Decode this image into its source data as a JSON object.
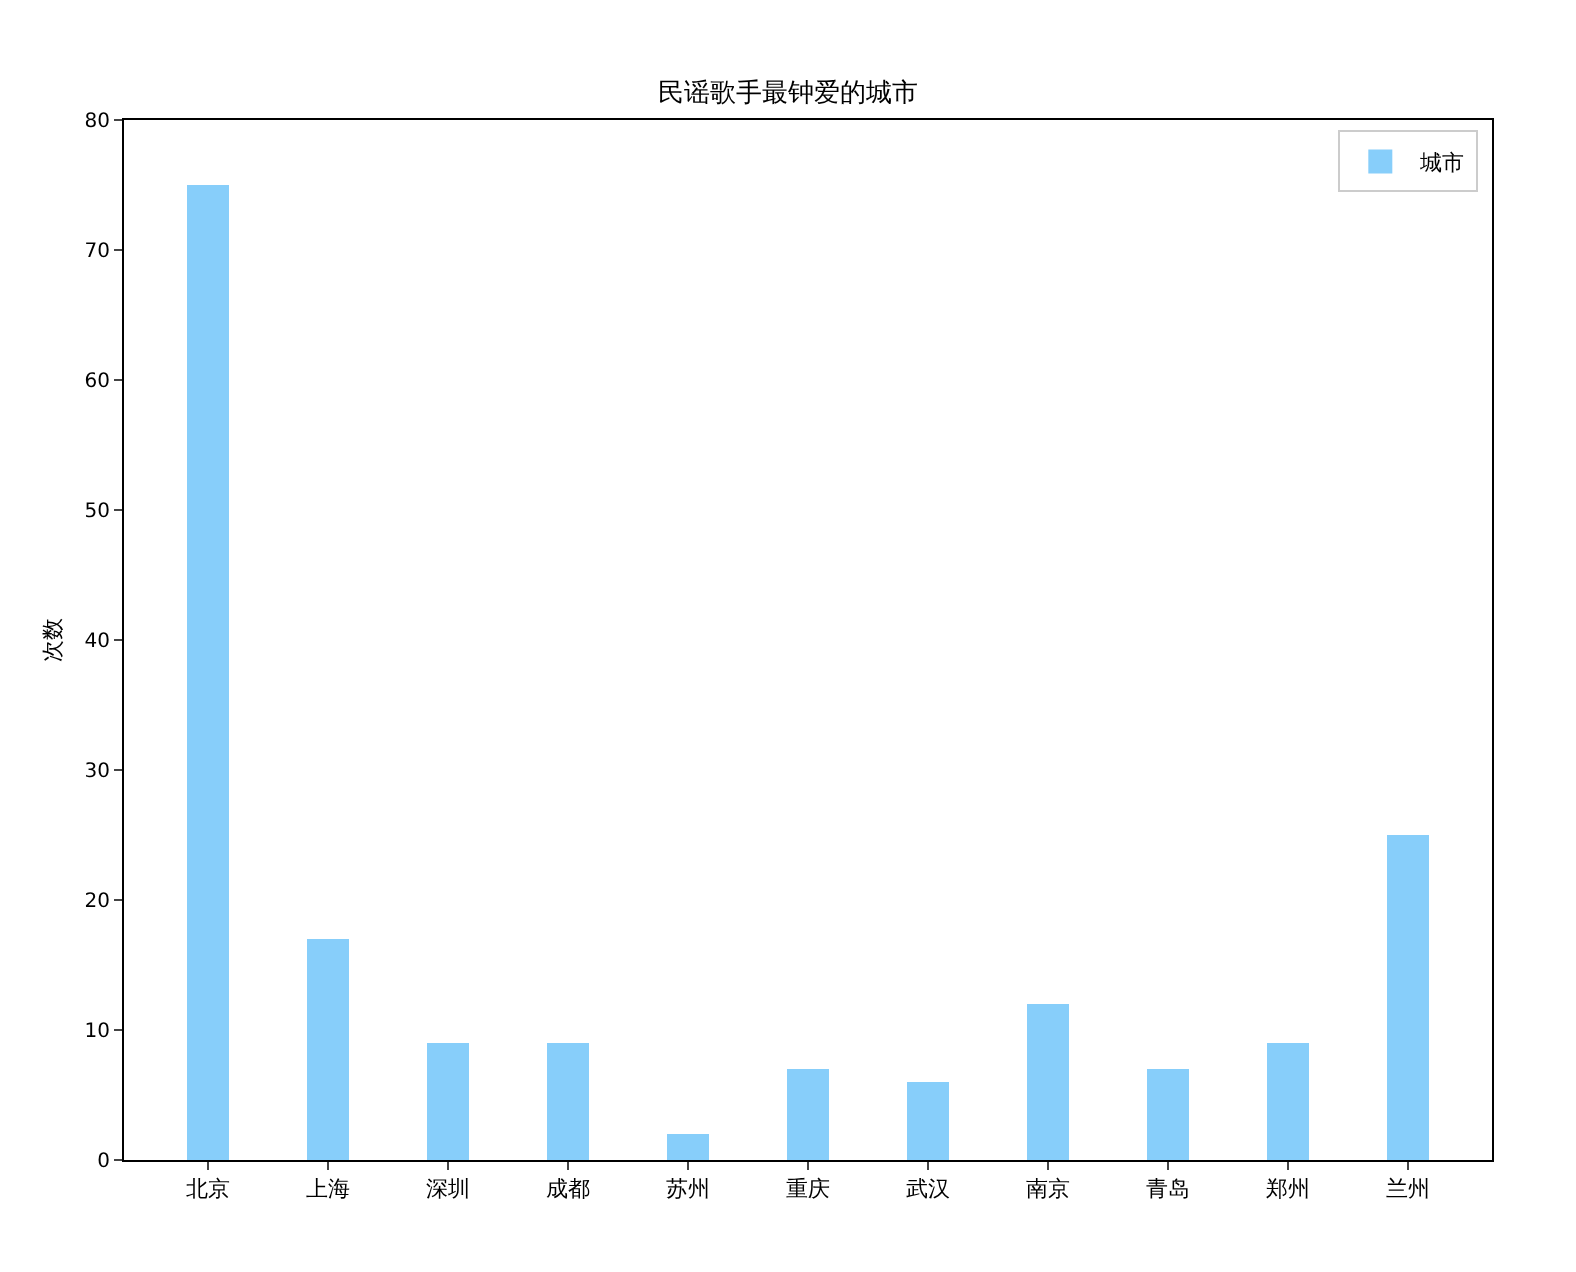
{
  "chart_data": {
    "type": "bar",
    "title": "民谣歌手最钟爱的城市",
    "ylabel": "次数",
    "categories": [
      "北京",
      "上海",
      "深圳",
      "成都",
      "苏州",
      "重庆",
      "武汉",
      "南京",
      "青岛",
      "郑州",
      "兰州"
    ],
    "series": [
      {
        "name": "城市",
        "color": "#87cefa",
        "values": [
          75,
          17,
          9,
          9,
          2,
          7,
          6,
          12,
          7,
          9,
          25
        ]
      }
    ],
    "ylim": [
      0,
      80
    ],
    "yticks": [
      0,
      10,
      20,
      30,
      40,
      50,
      60,
      70,
      80
    ],
    "grid": false,
    "legend": "top right"
  }
}
